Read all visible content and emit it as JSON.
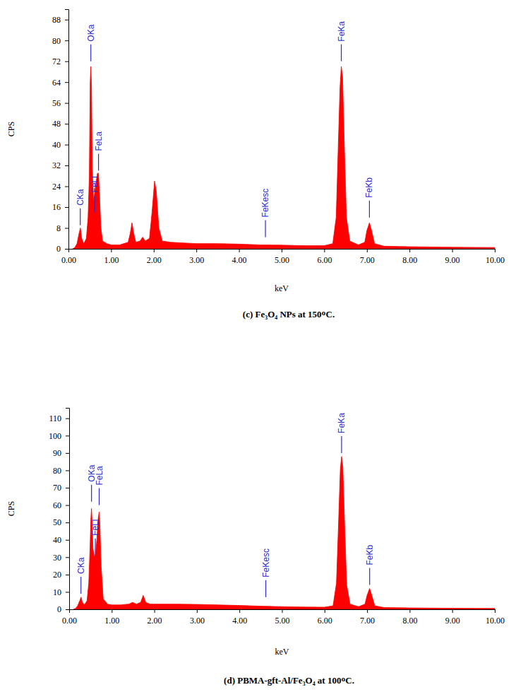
{
  "chart_data": [
    {
      "type": "area",
      "title": "(c) Fe₃O₄ NPs at 150ᴼC.",
      "x_label": "keV",
      "y_label": "CPS",
      "color": "#ff0000",
      "xlim": [
        0,
        10
      ],
      "ylim": [
        0,
        92
      ],
      "xticks": [
        {
          "value": 0,
          "label": "0.00"
        },
        {
          "value": 1,
          "label": "1.00"
        },
        {
          "value": 2,
          "label": "2.00"
        },
        {
          "value": 3,
          "label": "3.00"
        },
        {
          "value": 4,
          "label": "4.00"
        },
        {
          "value": 5,
          "label": "5.00"
        },
        {
          "value": 6,
          "label": "6.00"
        },
        {
          "value": 7,
          "label": "7.00"
        },
        {
          "value": 8,
          "label": "8.00"
        },
        {
          "value": 9,
          "label": "9.00"
        },
        {
          "value": 10,
          "label": "10.00"
        }
      ],
      "yticks": [
        0,
        8,
        16,
        24,
        32,
        40,
        48,
        56,
        64,
        72,
        80,
        88
      ],
      "x": [
        0.1,
        0.15,
        0.2,
        0.25,
        0.28,
        0.31,
        0.36,
        0.42,
        0.46,
        0.49,
        0.51,
        0.525,
        0.54,
        0.56,
        0.59,
        0.62,
        0.65,
        0.68,
        0.705,
        0.73,
        0.76,
        0.8,
        0.9,
        1.0,
        1.2,
        1.4,
        1.45,
        1.49,
        1.53,
        1.58,
        1.68,
        1.74,
        1.8,
        1.9,
        1.96,
        2.02,
        2.06,
        2.12,
        2.2,
        2.4,
        3.0,
        3.5,
        4.0,
        4.5,
        5.0,
        5.5,
        6.0,
        6.2,
        6.28,
        6.33,
        6.37,
        6.4,
        6.43,
        6.47,
        6.52,
        6.6,
        6.8,
        6.95,
        7.0,
        7.06,
        7.11,
        7.18,
        7.4,
        8.0,
        9.0,
        10.0
      ],
      "values": [
        0,
        0.5,
        2,
        6,
        8,
        4,
        2,
        4,
        12,
        28,
        64,
        70,
        62,
        30,
        18,
        22,
        26,
        29,
        29,
        20,
        8,
        3,
        2,
        1.5,
        1.5,
        2.5,
        6,
        10,
        6,
        2.5,
        3,
        4.5,
        3,
        4,
        14,
        26,
        22,
        8,
        3,
        2.5,
        2,
        2,
        1.8,
        1.5,
        1.4,
        1.2,
        1.2,
        2,
        12,
        40,
        62,
        70,
        66,
        40,
        12,
        3,
        1.5,
        2.5,
        7,
        10,
        7,
        2,
        1,
        0.8,
        0.6,
        0.5
      ],
      "annotations": [
        {
          "text": "CKa",
          "x": 0.277,
          "y": 9
        },
        {
          "text": "OKa",
          "x": 0.525,
          "y": 72
        },
        {
          "text": "FeLl",
          "x": 0.615,
          "y": 14
        },
        {
          "text": "FeLa",
          "x": 0.705,
          "y": 30
        },
        {
          "text": "FeKesc",
          "x": 4.62,
          "y": 4.5
        },
        {
          "text": "FeKa",
          "x": 6.4,
          "y": 72
        },
        {
          "text": "FeKb",
          "x": 7.06,
          "y": 12
        }
      ]
    },
    {
      "type": "area",
      "title": "(d) PBMA-gft-Al/Fe₃O₄ at 100ᴼC.",
      "x_label": "keV",
      "y_label": "CPS",
      "color": "#ff0000",
      "xlim": [
        0,
        10
      ],
      "ylim": [
        0,
        116
      ],
      "xticks": [
        {
          "value": 0,
          "label": "0.00"
        },
        {
          "value": 1,
          "label": "1.00"
        },
        {
          "value": 2,
          "label": "2.00"
        },
        {
          "value": 3,
          "label": "3.00"
        },
        {
          "value": 4,
          "label": "4.00"
        },
        {
          "value": 5,
          "label": "5.00"
        },
        {
          "value": 6,
          "label": "6.00"
        },
        {
          "value": 7,
          "label": "7.00"
        },
        {
          "value": 8,
          "label": "8.00"
        },
        {
          "value": 9,
          "label": "9.00"
        },
        {
          "value": 10,
          "label": "10.00"
        }
      ],
      "yticks": [
        0,
        10,
        20,
        30,
        40,
        50,
        60,
        70,
        80,
        90,
        100,
        110
      ],
      "x": [
        0.1,
        0.15,
        0.2,
        0.25,
        0.28,
        0.31,
        0.36,
        0.42,
        0.46,
        0.49,
        0.51,
        0.525,
        0.54,
        0.56,
        0.59,
        0.62,
        0.65,
        0.68,
        0.705,
        0.72,
        0.75,
        0.8,
        0.9,
        1.0,
        1.2,
        1.4,
        1.49,
        1.58,
        1.68,
        1.74,
        1.8,
        1.9,
        2.0,
        2.5,
        3.0,
        3.5,
        4.0,
        4.5,
        5.0,
        5.5,
        6.0,
        6.2,
        6.28,
        6.33,
        6.37,
        6.4,
        6.43,
        6.47,
        6.52,
        6.6,
        6.8,
        6.95,
        7.0,
        7.06,
        7.11,
        7.18,
        7.4,
        8.0,
        9.0,
        10.0
      ],
      "values": [
        0,
        0.5,
        2,
        5,
        7,
        4,
        2.5,
        5,
        15,
        35,
        52,
        58,
        50,
        35,
        30,
        32,
        40,
        52,
        56,
        50,
        25,
        6,
        3,
        2.5,
        2.5,
        3,
        4,
        3,
        4,
        8,
        4,
        3,
        3,
        3,
        2.8,
        2.5,
        2.2,
        1.8,
        1.5,
        1.3,
        1.2,
        2,
        15,
        50,
        80,
        88,
        82,
        50,
        14,
        3,
        1.5,
        3,
        8,
        12,
        8,
        2,
        1,
        0.8,
        0.6,
        0.5
      ],
      "annotations": [
        {
          "text": "CKa",
          "x": 0.277,
          "y": 9
        },
        {
          "text": "OKa",
          "x": 0.525,
          "y": 62
        },
        {
          "text": "FeLl",
          "x": 0.615,
          "y": 31
        },
        {
          "text": "FeLa",
          "x": 0.705,
          "y": 60
        },
        {
          "text": "FeKesc",
          "x": 4.62,
          "y": 7
        },
        {
          "text": "FeKa",
          "x": 6.4,
          "y": 90
        },
        {
          "text": "FeKb",
          "x": 7.06,
          "y": 14
        }
      ]
    }
  ]
}
